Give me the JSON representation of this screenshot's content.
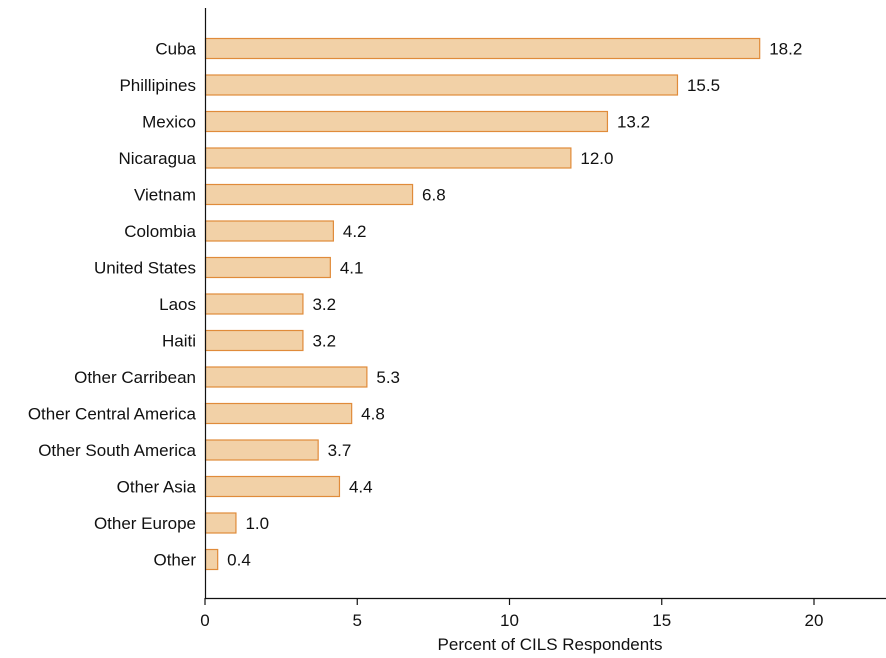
{
  "chart_data": {
    "type": "bar",
    "orientation": "horizontal",
    "title": "",
    "xlabel": "Percent of CILS Respondents",
    "ylabel": "",
    "xlim": [
      0,
      22.5
    ],
    "xticks": [
      "0",
      "5",
      "10",
      "15",
      "20"
    ],
    "grid": false,
    "legend": "none",
    "bar_fill": "#f2d1a7",
    "bar_stroke": "#e08b3a",
    "categories": [
      "Cuba",
      "Phillipines",
      "Mexico",
      "Nicaragua",
      "Vietnam",
      "Colombia",
      "United States",
      "Laos",
      "Haiti",
      "Other Carribean",
      "Other Central America",
      "Other South America",
      "Other Asia",
      "Other Europe",
      "Other"
    ],
    "values": [
      18.2,
      15.5,
      13.2,
      12.0,
      6.8,
      4.2,
      4.1,
      3.2,
      3.2,
      5.3,
      4.8,
      3.7,
      4.4,
      1.0,
      0.4
    ],
    "value_labels": [
      "18.2",
      "15.5",
      "13.2",
      "12.0",
      "6.8",
      "4.2",
      "4.1",
      "3.2",
      "3.2",
      "5.3",
      "4.8",
      "3.7",
      "4.4",
      "1.0",
      "0.4"
    ]
  }
}
